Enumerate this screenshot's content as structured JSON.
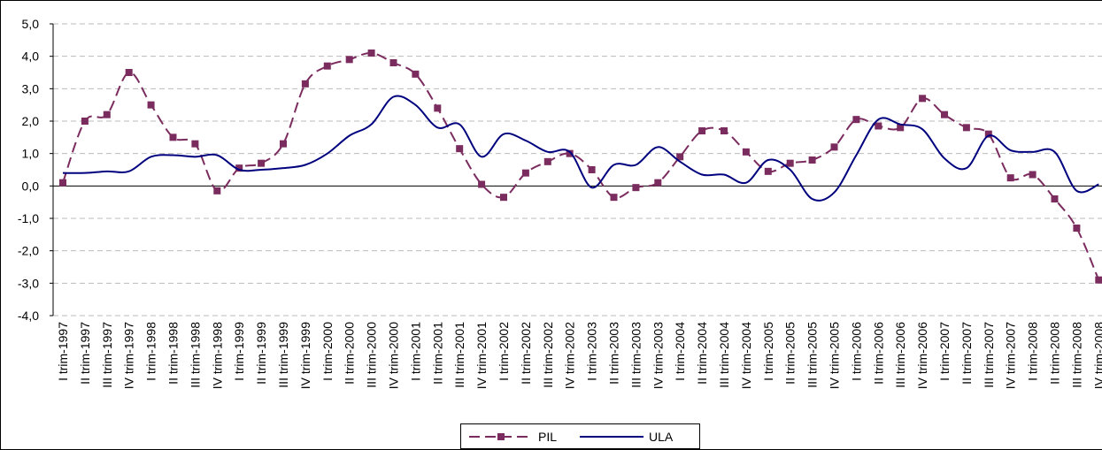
{
  "chart_data": {
    "type": "line",
    "categories": [
      "I trim-1997",
      "II trim-1997",
      "III trim-1997",
      "IV trim-1997",
      "I trim-1998",
      "II trim-1998",
      "III trim-1998",
      "IV trim-1998",
      "I trim-1999",
      "II trim-1999",
      "III trim-1999",
      "IV trim-1999",
      "I trim-2000",
      "II trim-2000",
      "III trim-2000",
      "IV trim-2000",
      "I trim-2001",
      "II trim-2001",
      "III trim-2001",
      "IV trim-2001",
      "I trim-2002",
      "II trim-2002",
      "III trim-2002",
      "IV trim-2002",
      "I trim-2003",
      "II trim-2003",
      "III trim-2003",
      "IV trim-2003",
      "I trim-2004",
      "II trim-2004",
      "III trim-2004",
      "IV trim-2004",
      "I trim-2005",
      "II trim-2005",
      "III trim-2005",
      "IV trim-2005",
      "I trim-2006",
      "II trim-2006",
      "III trim-2006",
      "IV trim-2006",
      "I trim-2007",
      "II trim-2007",
      "III trim-2007",
      "IV trim-2007",
      "I trim-2008",
      "II trim-2008",
      "III trim-2008",
      "IV trim-2008"
    ],
    "series": [
      {
        "name": "PIL",
        "color": "#7b2c5f",
        "dashed": true,
        "markers": true,
        "smooth": true,
        "values": [
          0.1,
          2.0,
          2.2,
          3.5,
          2.5,
          1.5,
          1.3,
          -0.15,
          0.55,
          0.7,
          1.3,
          3.15,
          3.7,
          3.9,
          4.1,
          3.8,
          3.45,
          2.4,
          1.15,
          0.05,
          -0.35,
          0.4,
          0.75,
          1.0,
          0.5,
          -0.35,
          -0.05,
          0.1,
          0.9,
          1.7,
          1.7,
          1.05,
          0.45,
          0.7,
          0.8,
          1.2,
          2.05,
          1.85,
          1.8,
          2.7,
          2.2,
          1.8,
          1.6,
          0.25,
          0.35,
          -0.4,
          -1.3,
          -2.9
        ]
      },
      {
        "name": "ULA",
        "color": "#00007f",
        "dashed": false,
        "markers": false,
        "smooth": true,
        "values": [
          0.4,
          0.4,
          0.45,
          0.45,
          0.9,
          0.95,
          0.9,
          0.95,
          0.5,
          0.5,
          0.55,
          0.65,
          1.0,
          1.55,
          1.9,
          2.75,
          2.5,
          1.8,
          1.9,
          0.9,
          1.6,
          1.4,
          1.05,
          1.05,
          -0.05,
          0.65,
          0.65,
          1.2,
          0.75,
          0.35,
          0.35,
          0.1,
          0.8,
          0.5,
          -0.4,
          -0.2,
          0.95,
          2.05,
          1.9,
          1.75,
          0.85,
          0.55,
          1.55,
          1.1,
          1.05,
          1.05,
          -0.15,
          0.05
        ]
      }
    ],
    "ylim": [
      -4,
      5
    ],
    "yticks": [
      {
        "value": -4,
        "label": "-4,0"
      },
      {
        "value": -3,
        "label": "-3,0"
      },
      {
        "value": -2,
        "label": "-2,0"
      },
      {
        "value": -1,
        "label": "-1,0"
      },
      {
        "value": 0,
        "label": "0,0"
      },
      {
        "value": 1,
        "label": "1,0"
      },
      {
        "value": 2,
        "label": "2,0"
      },
      {
        "value": 3,
        "label": "3,0"
      },
      {
        "value": 4,
        "label": "4,0"
      },
      {
        "value": 5,
        "label": "5,0"
      }
    ],
    "grid": true,
    "legend": "bottom"
  }
}
